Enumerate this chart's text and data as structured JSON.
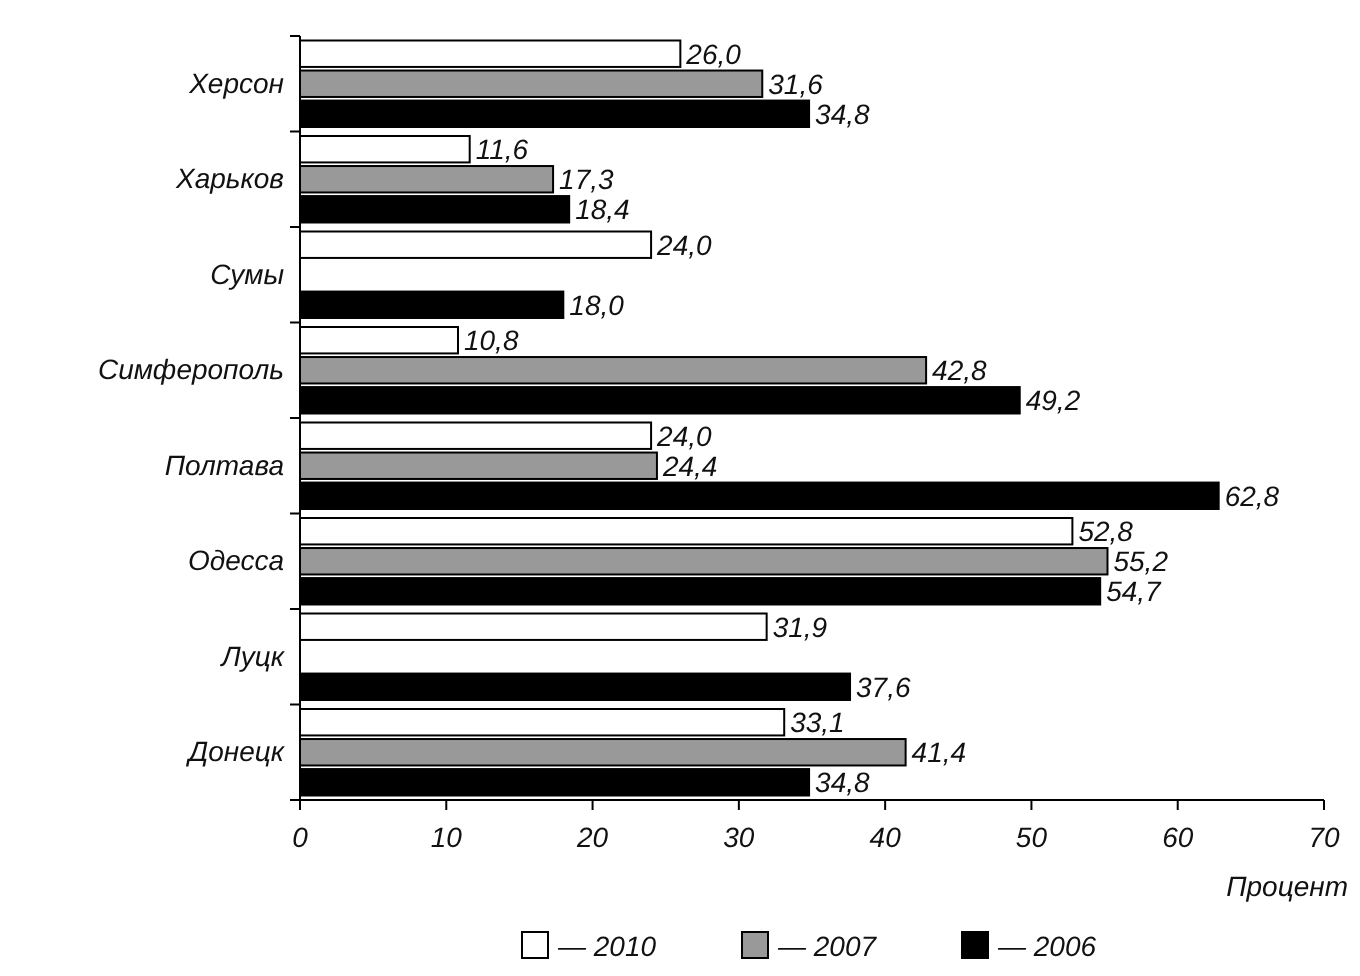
{
  "chart_data": {
    "type": "bar",
    "orientation": "horizontal",
    "xlabel": "Процент",
    "categories": [
      "Херсон",
      "Харьков",
      "Сумы",
      "Симферополь",
      "Полтава",
      "Одесса",
      "Луцк",
      "Донецк"
    ],
    "xlim": [
      0,
      70
    ],
    "xticks": [
      0,
      10,
      20,
      30,
      40,
      50,
      60,
      70
    ],
    "grid": false,
    "legend": "bottom",
    "series": [
      {
        "name": "— 2010",
        "color": "#ffffff",
        "values": [
          26.0,
          11.6,
          24.0,
          10.8,
          24.0,
          52.8,
          31.9,
          33.1
        ],
        "value_labels": [
          "26,0",
          "11,6",
          "24,0",
          "10,8",
          "24,0",
          "52,8",
          "31,9",
          "33,1"
        ]
      },
      {
        "name": "— 2007",
        "color": "#999999",
        "values": [
          31.6,
          17.3,
          null,
          42.8,
          24.4,
          55.2,
          null,
          41.4
        ],
        "value_labels": [
          "31,6",
          "17,3",
          null,
          "42,8",
          "24,4",
          "55,2",
          null,
          "41,4"
        ]
      },
      {
        "name": "— 2006",
        "color": "#000000",
        "values": [
          34.8,
          18.4,
          18.0,
          49.2,
          62.8,
          54.7,
          37.6,
          34.8
        ],
        "value_labels": [
          "34,8",
          "18,4",
          "18,0",
          "49,2",
          "62,8",
          "54,7",
          "37,6",
          "34,8"
        ]
      }
    ]
  }
}
